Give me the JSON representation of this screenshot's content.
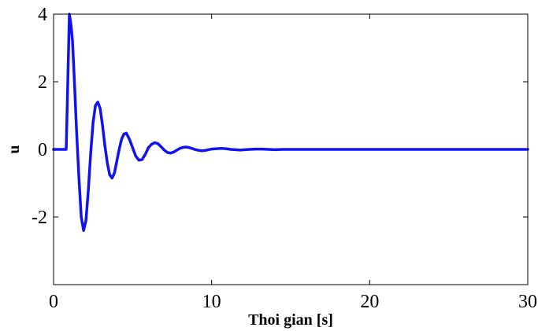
{
  "chart_data": {
    "type": "line",
    "title": "",
    "xlabel": "Thoi gian [s]",
    "ylabel": "u",
    "xlim": [
      0,
      30
    ],
    "ylim": [
      -4,
      4
    ],
    "grid": false,
    "x_ticks": [
      {
        "value": 0,
        "label": "0"
      },
      {
        "value": 10,
        "label": "10"
      },
      {
        "value": 20,
        "label": "20"
      },
      {
        "value": 30,
        "label": "30"
      }
    ],
    "y_ticks": [
      {
        "value": -2,
        "label": "-2"
      },
      {
        "value": 0,
        "label": "0"
      },
      {
        "value": 2,
        "label": "2"
      },
      {
        "value": 4,
        "label": "4"
      }
    ],
    "series": [
      {
        "color": "#1212f0",
        "x": [
          0,
          0.75,
          0.8,
          0.9,
          1.0,
          1.1,
          1.2,
          1.3,
          1.45,
          1.6,
          1.75,
          1.9,
          2.05,
          2.2,
          2.35,
          2.5,
          2.65,
          2.8,
          2.95,
          3.1,
          3.25,
          3.4,
          3.55,
          3.7,
          3.85,
          4.0,
          4.15,
          4.3,
          4.45,
          4.6,
          4.8,
          5.0,
          5.2,
          5.4,
          5.6,
          5.8,
          6.0,
          6.2,
          6.4,
          6.6,
          6.8,
          7.0,
          7.2,
          7.4,
          7.6,
          7.8,
          8.0,
          8.2,
          8.4,
          8.6,
          8.8,
          9.0,
          9.2,
          9.4,
          9.6,
          9.8,
          10.0,
          10.3,
          10.6,
          10.9,
          11.2,
          11.5,
          11.8,
          12.1,
          12.4,
          12.8,
          13.2,
          13.6,
          14.0,
          14.5,
          15.0,
          15.5,
          16.0,
          17.0,
          18.0,
          19.0,
          20.0,
          22.0,
          24.0,
          26.0,
          28.0,
          30.0
        ],
        "y": [
          0,
          0,
          0,
          2.0,
          4.0,
          3.7,
          3.2,
          2.2,
          0.6,
          -0.8,
          -2.0,
          -2.4,
          -2.1,
          -1.2,
          -0.1,
          0.8,
          1.3,
          1.4,
          1.2,
          0.7,
          0.1,
          -0.4,
          -0.75,
          -0.85,
          -0.7,
          -0.35,
          0.0,
          0.3,
          0.45,
          0.48,
          0.3,
          0.05,
          -0.2,
          -0.32,
          -0.3,
          -0.15,
          0.05,
          0.15,
          0.2,
          0.17,
          0.08,
          -0.02,
          -0.09,
          -0.11,
          -0.08,
          -0.02,
          0.03,
          0.06,
          0.07,
          0.05,
          0.02,
          -0.01,
          -0.03,
          -0.04,
          -0.03,
          -0.01,
          0.01,
          0.02,
          0.03,
          0.02,
          0.0,
          -0.01,
          -0.02,
          -0.01,
          0.0,
          0.01,
          0.01,
          0.0,
          -0.01,
          0.0,
          0.0,
          0.0,
          0.0,
          0.0,
          0.0,
          0.0,
          0.0,
          0.0,
          0.0,
          0.0,
          0.0,
          0.0
        ]
      }
    ]
  }
}
